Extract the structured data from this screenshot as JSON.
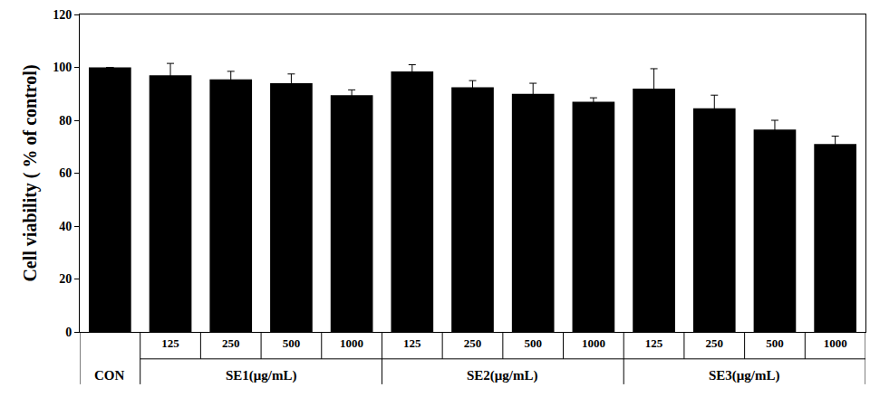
{
  "chart_data": {
    "type": "bar",
    "y_label": "Cell viability ( % of control)",
    "categories": [
      null,
      "125",
      "250",
      "500",
      "1000",
      "125",
      "250",
      "500",
      "1000",
      "125",
      "250",
      "500",
      "1000"
    ],
    "groups": [
      "CON",
      "SE1(μg/mL)",
      "SE1(μg/mL)",
      "SE1(μg/mL)",
      "SE1(μg/mL)",
      "SE2(μg/mL)",
      "SE2(μg/mL)",
      "SE2(μg/mL)",
      "SE2(μg/mL)",
      "SE3(μg/mL)",
      "SE3(μg/mL)",
      "SE3(μg/mL)",
      "SE3(μg/mL)"
    ],
    "values": [
      100,
      97,
      95.5,
      94,
      89.5,
      98.5,
      92.5,
      90,
      87,
      92,
      84.5,
      76.5,
      71
    ],
    "errors": [
      0,
      4.5,
      3,
      3.5,
      2,
      2.5,
      2.5,
      4,
      1.5,
      7.5,
      5,
      3.5,
      3
    ],
    "color": "#000000",
    "ylim": [
      0,
      120
    ],
    "yticks": [
      0,
      20,
      40,
      60,
      80,
      100,
      120
    ],
    "grid": false
  }
}
